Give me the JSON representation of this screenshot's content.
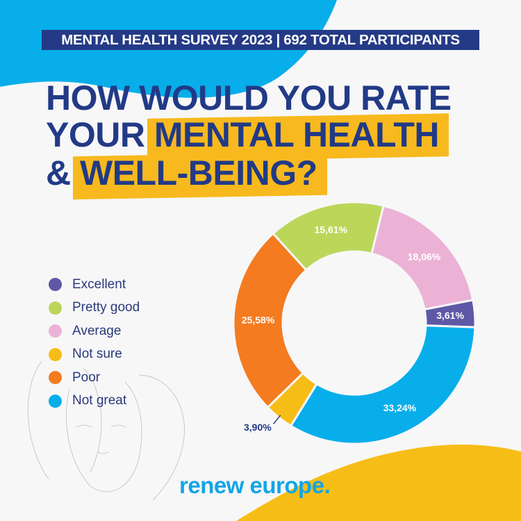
{
  "banner": "MENTAL HEALTH SURVEY 2023 | 692 TOTAL PARTICIPANTS",
  "title": {
    "line1": "HOW WOULD YOU RATE",
    "line2_plain": "YOUR",
    "line2_highlight": "MENTAL HEALTH",
    "line3_plain": "&",
    "line3_highlight": "WELL-BEING?"
  },
  "logo": "renew europe.",
  "colors": {
    "navy": "#223a86",
    "highlight": "#f7b91d",
    "blue": "#12a5e6"
  },
  "chart_data": {
    "type": "pie",
    "donut": true,
    "legend_position": "left",
    "start_angle_deg": 14,
    "slices": [
      {
        "name": "Average",
        "value": 18.06,
        "label": "18,06%",
        "color": "#ebb2d6"
      },
      {
        "name": "Excellent",
        "value": 3.61,
        "label": "3,61%",
        "color": "#5e58a6"
      },
      {
        "name": "Not great",
        "value": 33.24,
        "label": "33,24%",
        "color": "#07aeea"
      },
      {
        "name": "Not sure",
        "value": 3.9,
        "label": "3,90%",
        "color": "#f7bd17"
      },
      {
        "name": "Poor",
        "value": 25.58,
        "label": "25,58%",
        "color": "#f47b20"
      },
      {
        "name": "Pretty good",
        "value": 15.61,
        "label": "15,61%",
        "color": "#bcd65a"
      }
    ],
    "legend": [
      {
        "label": "Excellent",
        "color": "#5e58a6"
      },
      {
        "label": "Pretty good",
        "color": "#bcd65a"
      },
      {
        "label": "Average",
        "color": "#ebb2d6"
      },
      {
        "label": "Not sure",
        "color": "#f7bd17"
      },
      {
        "label": "Poor",
        "color": "#f47b20"
      },
      {
        "label": "Not great",
        "color": "#07aeea"
      }
    ]
  }
}
